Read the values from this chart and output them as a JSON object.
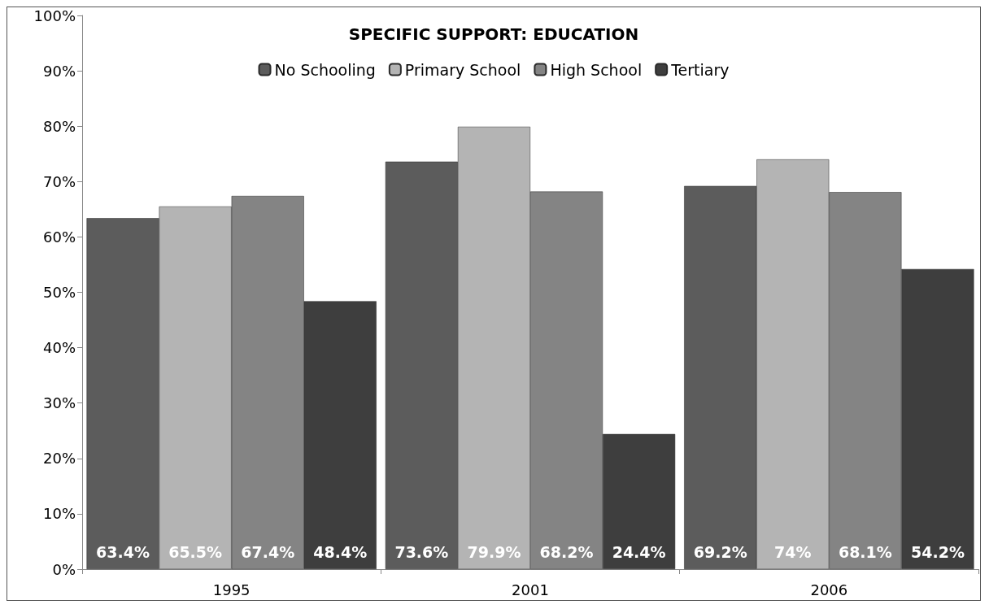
{
  "chart_data": {
    "type": "bar",
    "title": "SPECIFIC SUPPORT: EDUCATION",
    "categories": [
      "1995",
      "2001",
      "2006"
    ],
    "series": [
      {
        "name": "No Schooling",
        "color": "#5c5c5c",
        "values": [
          63.4,
          73.6,
          69.2
        ],
        "value_labels": [
          "63.4%",
          "73.6%",
          "69.2%"
        ]
      },
      {
        "name": "Primary School",
        "color": "#b4b4b4",
        "values": [
          65.5,
          79.9,
          74
        ],
        "value_labels": [
          "65.5%",
          "79.9%",
          "74%"
        ]
      },
      {
        "name": "High School",
        "color": "#848484",
        "values": [
          67.4,
          68.2,
          68.1
        ],
        "value_labels": [
          "67.4%",
          "68.2%",
          "68.1%"
        ]
      },
      {
        "name": "Tertiary",
        "color": "#3e3e3e",
        "values": [
          48.4,
          24.4,
          54.2
        ],
        "value_labels": [
          "48.4%",
          "24.4%",
          "54.2%"
        ]
      }
    ],
    "ylim": [
      0,
      100
    ],
    "yticks": [
      {
        "value": 0,
        "label": "0%"
      },
      {
        "value": 10,
        "label": "10%"
      },
      {
        "value": 20,
        "label": "20%"
      },
      {
        "value": 30,
        "label": "30%"
      },
      {
        "value": 40,
        "label": "40%"
      },
      {
        "value": 50,
        "label": "50%"
      },
      {
        "value": 60,
        "label": "60%"
      },
      {
        "value": 70,
        "label": "70%"
      },
      {
        "value": 80,
        "label": "80%"
      },
      {
        "value": 90,
        "label": "90%"
      },
      {
        "value": 100,
        "label": "100%"
      }
    ],
    "grid": false,
    "legend": "top"
  }
}
